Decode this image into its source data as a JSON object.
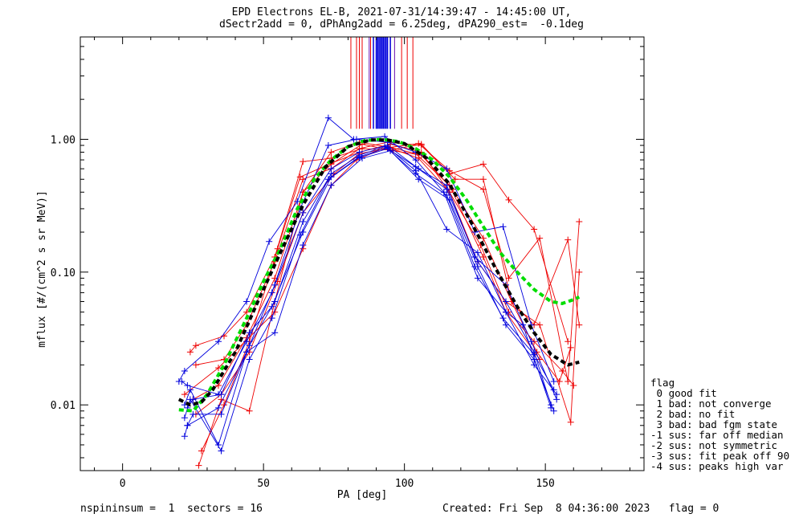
{
  "title_line1": "EPD Electrons EL-B, 2021-07-31/14:39:47 - 14:45:00 UT,",
  "title_line2": "dSectr2add = 0, dPhAng2add = 6.25deg, dPA290_est=  -0.1deg",
  "footer": {
    "left": "nspininsum =  1  sectors = 16",
    "right": "Created: Fri Sep  8 04:36:00 2023   flag = 0"
  },
  "legend": {
    "title": "flag",
    "items": [
      " 0 good fit",
      " 1 bad: not converge",
      " 2 bad: no fit",
      " 3 bad: bad fgm state",
      "-1 sus: far off median",
      "-2 sus: not symmetric",
      "-3 sus: fit peak off 90",
      "-4 sus: peaks high var"
    ]
  },
  "colors": {
    "red": "#ee0000",
    "blue": "#0000dd",
    "green": "#00dd00",
    "black": "#000000",
    "purple": "#6a0dad"
  },
  "chart_data": {
    "type": "line",
    "xlabel": "PA [deg]",
    "ylabel": "mflux [#/(cm^2 s sr MeV)]",
    "xlim": [
      -15,
      185
    ],
    "ylim": [
      0.0032,
      5.9
    ],
    "yscale": "log",
    "xticks": [
      0,
      50,
      100,
      150
    ],
    "xtick_labels": [
      "0",
      "50",
      "100",
      "150"
    ],
    "yticks": [
      0.01,
      0.1,
      1.0
    ],
    "ytick_labels": [
      "0.01",
      "0.10",
      "1.00"
    ],
    "red_series": [
      {
        "x": [
          22,
          34,
          54,
          64,
          74,
          83,
          94,
          104,
          116,
          128,
          136,
          148
        ],
        "y": [
          0.012,
          0.019,
          0.05,
          0.15,
          0.45,
          0.7,
          0.88,
          0.78,
          0.45,
          0.13,
          0.05,
          0.022
        ]
      },
      {
        "x": [
          24,
          26,
          36,
          44,
          54,
          64,
          74,
          85,
          95,
          106,
          116,
          128,
          137,
          146,
          158
        ],
        "y": [
          0.025,
          0.028,
          0.033,
          0.05,
          0.13,
          0.68,
          0.72,
          0.85,
          0.83,
          0.92,
          0.55,
          0.65,
          0.35,
          0.21,
          0.03
        ]
      },
      {
        "x": [
          26,
          36,
          44,
          54,
          64,
          74,
          84,
          94,
          106,
          118,
          128,
          138,
          146,
          158,
          162
        ],
        "y": [
          0.02,
          0.022,
          0.04,
          0.12,
          0.5,
          0.6,
          0.85,
          0.95,
          0.9,
          0.5,
          0.5,
          0.06,
          0.04,
          0.175,
          0.04
        ]
      },
      {
        "x": [
          27,
          35,
          45,
          54,
          64,
          74,
          84,
          95,
          105,
          116,
          128,
          137,
          148,
          158,
          162
        ],
        "y": [
          0.0035,
          0.011,
          0.009,
          0.06,
          0.4,
          0.8,
          0.95,
          0.87,
          0.93,
          0.58,
          0.42,
          0.09,
          0.18,
          0.015,
          0.24
        ]
      },
      {
        "x": [
          28,
          36,
          45,
          55,
          63,
          74,
          84,
          95,
          106,
          116,
          126,
          136,
          148,
          159,
          162
        ],
        "y": [
          0.0045,
          0.01,
          0.03,
          0.15,
          0.52,
          0.66,
          0.8,
          0.92,
          0.8,
          0.4,
          0.12,
          0.06,
          0.04,
          0.0074,
          0.1
        ]
      },
      {
        "x": [
          25,
          34,
          44,
          54,
          64,
          74,
          85,
          96,
          106,
          117,
          128,
          138,
          147,
          155,
          159
        ],
        "y": [
          0.011,
          0.014,
          0.032,
          0.09,
          0.4,
          0.65,
          0.92,
          0.82,
          0.76,
          0.42,
          0.18,
          0.06,
          0.025,
          0.015,
          0.027
        ]
      },
      {
        "x": [
          26,
          35,
          45,
          55,
          64,
          75,
          84,
          95,
          105,
          116,
          127,
          137,
          146,
          156,
          160
        ],
        "y": [
          0.0085,
          0.012,
          0.025,
          0.085,
          0.28,
          0.55,
          0.78,
          0.86,
          0.72,
          0.4,
          0.16,
          0.05,
          0.03,
          0.018,
          0.014
        ]
      }
    ],
    "blue_series": [
      {
        "x": [
          20,
          22,
          34,
          44,
          52,
          62,
          73,
          82,
          93,
          104,
          114,
          126,
          136,
          142,
          152
        ],
        "y": [
          0.015,
          0.018,
          0.03,
          0.06,
          0.17,
          0.34,
          1.45,
          1.0,
          1.05,
          0.7,
          0.4,
          0.09,
          0.05,
          0.04,
          0.0095
        ]
      },
      {
        "x": [
          21,
          23,
          34,
          44,
          53,
          63,
          73,
          83,
          94,
          104,
          115,
          125,
          135,
          145,
          153
        ],
        "y": [
          0.015,
          0.014,
          0.012,
          0.03,
          0.07,
          0.3,
          0.9,
          1.0,
          0.95,
          0.8,
          0.6,
          0.2,
          0.22,
          0.04,
          0.015
        ]
      },
      {
        "x": [
          22,
          24,
          34,
          44,
          54,
          64,
          74,
          84,
          94,
          105,
          115,
          125,
          136,
          145,
          154
        ],
        "y": [
          0.01,
          0.013,
          0.005,
          0.025,
          0.08,
          0.28,
          0.6,
          0.8,
          0.9,
          0.6,
          0.45,
          0.13,
          0.08,
          0.03,
          0.011
        ]
      },
      {
        "x": [
          22,
          24,
          35,
          45,
          53,
          63,
          73,
          84,
          94,
          104,
          115,
          125,
          135,
          146,
          153
        ],
        "y": [
          0.008,
          0.011,
          0.0045,
          0.022,
          0.045,
          0.19,
          0.5,
          0.73,
          0.85,
          0.55,
          0.38,
          0.11,
          0.045,
          0.024,
          0.013
        ]
      },
      {
        "x": [
          23,
          25,
          35,
          45,
          54,
          64,
          74,
          84,
          93,
          104,
          115,
          126,
          136,
          146,
          152
        ],
        "y": [
          0.007,
          0.0085,
          0.0085,
          0.028,
          0.06,
          0.24,
          0.55,
          0.76,
          0.88,
          0.62,
          0.42,
          0.12,
          0.06,
          0.025,
          0.01
        ]
      },
      {
        "x": [
          22,
          23,
          34,
          44,
          54,
          64,
          74,
          85,
          95,
          105,
          116,
          126,
          136,
          146,
          153
        ],
        "y": [
          0.0058,
          0.007,
          0.0095,
          0.025,
          0.035,
          0.16,
          0.45,
          0.72,
          0.82,
          0.5,
          0.35,
          0.11,
          0.04,
          0.022,
          0.009
        ]
      },
      {
        "x": [
          23,
          25,
          35,
          45,
          53,
          64,
          74,
          84,
          94,
          104,
          115,
          126,
          136,
          146,
          154
        ],
        "y": [
          0.0095,
          0.011,
          0.012,
          0.035,
          0.055,
          0.2,
          0.52,
          0.74,
          0.87,
          0.58,
          0.21,
          0.14,
          0.05,
          0.02,
          0.012
        ]
      }
    ],
    "green_series": {
      "x": [
        20,
        25,
        30,
        36,
        44,
        50,
        56,
        62,
        68,
        74,
        80,
        86,
        92,
        98,
        104,
        110,
        116,
        122,
        128,
        134,
        140,
        146,
        152,
        156,
        160,
        162
      ],
      "y": [
        0.0092,
        0.009,
        0.012,
        0.02,
        0.045,
        0.085,
        0.15,
        0.3,
        0.5,
        0.7,
        0.88,
        0.98,
        1.0,
        0.96,
        0.85,
        0.7,
        0.52,
        0.35,
        0.22,
        0.14,
        0.1,
        0.074,
        0.06,
        0.058,
        0.062,
        0.065
      ]
    },
    "black_series": {
      "x": [
        20,
        24,
        28,
        32,
        40,
        48,
        56,
        64,
        72,
        80,
        88,
        94,
        100,
        108,
        116,
        124,
        132,
        140,
        146,
        152,
        158,
        162
      ],
      "y": [
        0.011,
        0.01,
        0.0105,
        0.013,
        0.025,
        0.06,
        0.14,
        0.32,
        0.62,
        0.88,
        0.99,
        0.99,
        0.93,
        0.72,
        0.46,
        0.23,
        0.11,
        0.055,
        0.035,
        0.024,
        0.02,
        0.021
      ]
    },
    "vertical_lines": {
      "top": 5.9,
      "red_bottom": 1.2,
      "blue_bottom": 1.2,
      "red_x": [
        81,
        83,
        84,
        85,
        88,
        95,
        99,
        101,
        103
      ],
      "blue_x": [
        89,
        90,
        90.5,
        91,
        91.5,
        92,
        92.5,
        93,
        93.5,
        94,
        95
      ],
      "purple_x": [
        87.5,
        96.5
      ]
    }
  }
}
